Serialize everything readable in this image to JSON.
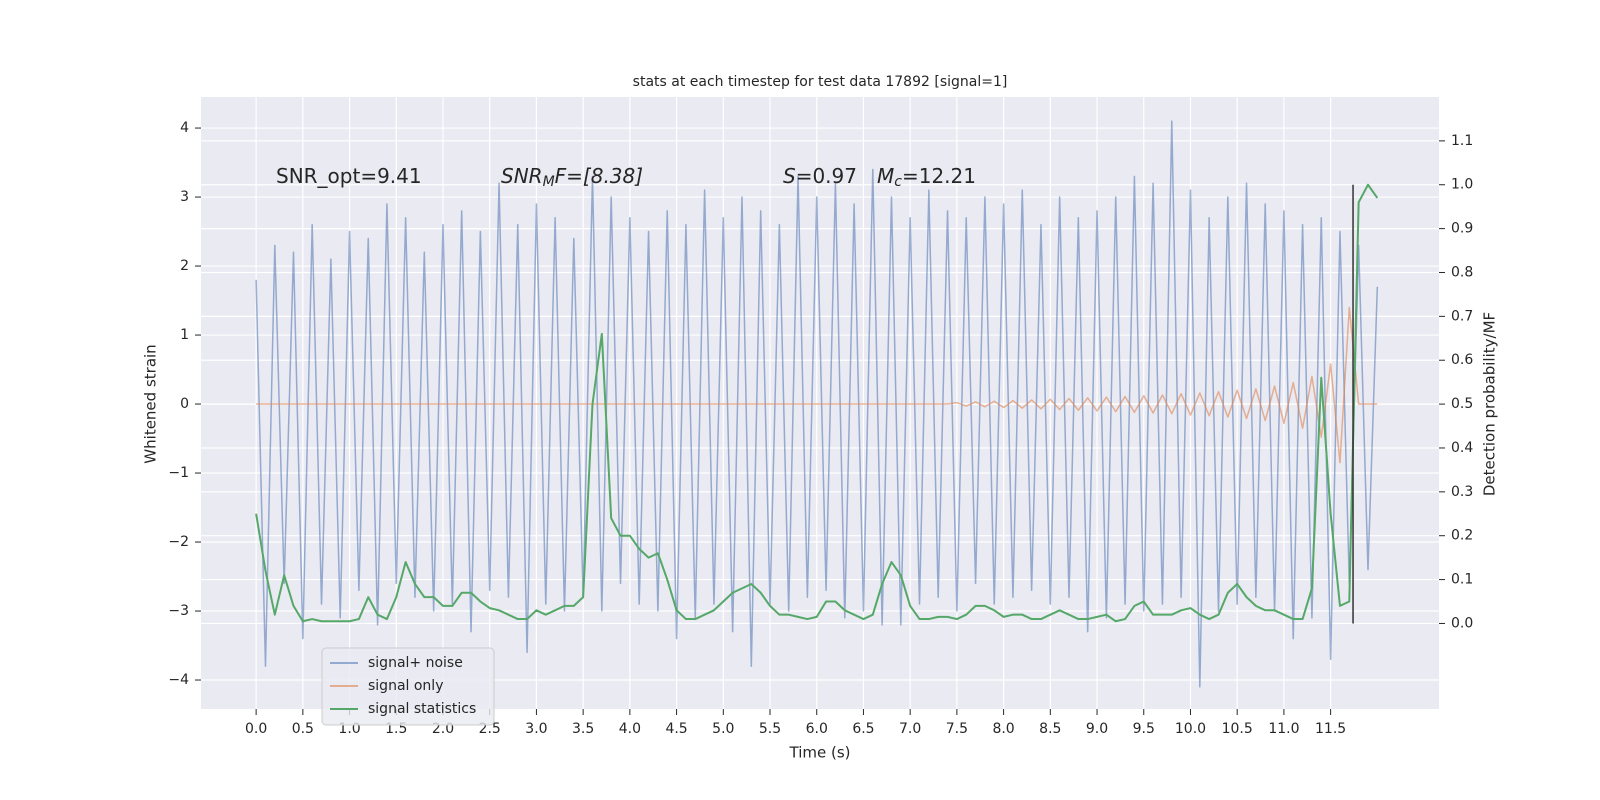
{
  "chart_data": {
    "type": "line",
    "title": "stats at each timestep for test data 17892 [signal=1]",
    "x_label": "Time (s)",
    "y_label": "Whitened strain",
    "y2_label": "Detection probability/MF",
    "annotations": [
      [
        "SNR_opt=9.41"
      ],
      [
        "SNR",
        "M",
        "F=[8.38]"
      ],
      [
        "S",
        "=0.97"
      ],
      [
        "M",
        "c",
        "=12.21"
      ]
    ],
    "x": [
      0.0,
      0.1,
      0.2,
      0.3,
      0.4,
      0.5,
      0.6,
      0.7,
      0.8,
      0.9,
      1.0,
      1.1,
      1.2,
      1.3,
      1.4,
      1.5,
      1.6,
      1.7,
      1.8,
      1.9,
      2.0,
      2.1,
      2.2,
      2.3,
      2.4,
      2.5,
      2.6,
      2.7,
      2.8,
      2.9,
      3.0,
      3.1,
      3.2,
      3.3,
      3.4,
      3.5,
      3.6,
      3.7,
      3.8,
      3.9,
      4.0,
      4.1,
      4.2,
      4.3,
      4.4,
      4.5,
      4.6,
      4.7,
      4.8,
      4.9,
      5.0,
      5.1,
      5.2,
      5.3,
      5.4,
      5.5,
      5.6,
      5.7,
      5.8,
      5.9,
      6.0,
      6.1,
      6.2,
      6.3,
      6.4,
      6.5,
      6.6,
      6.7,
      6.8,
      6.9,
      7.0,
      7.1,
      7.2,
      7.3,
      7.4,
      7.5,
      7.6,
      7.7,
      7.8,
      7.9,
      8.0,
      8.1,
      8.2,
      8.3,
      8.4,
      8.5,
      8.6,
      8.7,
      8.8,
      8.9,
      9.0,
      9.1,
      9.2,
      9.3,
      9.4,
      9.5,
      9.6,
      9.7,
      9.8,
      9.9,
      10.0,
      10.1,
      10.2,
      10.3,
      10.4,
      10.5,
      10.6,
      10.7,
      10.8,
      10.9,
      11.0,
      11.1,
      11.2,
      11.3,
      11.4,
      11.5,
      11.6,
      11.7,
      11.8,
      11.9,
      12.0
    ],
    "series": [
      {
        "name": "signal+ noise",
        "color": "#4c72b0",
        "alpha": 0.55,
        "axis": "y",
        "values": [
          1.8,
          -3.8,
          2.3,
          -2.6,
          2.2,
          -3.4,
          2.6,
          -2.9,
          2.1,
          -3.1,
          2.5,
          -2.7,
          2.4,
          -3.2,
          2.9,
          -2.6,
          2.7,
          -2.8,
          2.2,
          -3.0,
          2.6,
          -2.9,
          2.8,
          -3.3,
          2.5,
          -2.7,
          3.2,
          -2.8,
          2.6,
          -3.6,
          2.9,
          -2.9,
          2.7,
          -3.0,
          2.4,
          -2.8,
          3.3,
          -3.0,
          3.0,
          -2.6,
          2.7,
          -2.9,
          2.5,
          -3.0,
          2.8,
          -3.4,
          2.6,
          -3.1,
          3.1,
          -2.9,
          2.7,
          -3.3,
          3.0,
          -3.8,
          2.8,
          -2.9,
          2.6,
          -3.0,
          3.3,
          -2.8,
          3.0,
          -2.7,
          3.2,
          -3.1,
          2.9,
          -3.0,
          3.4,
          -3.2,
          3.0,
          -3.2,
          2.7,
          -2.9,
          3.1,
          -2.8,
          2.8,
          -3.0,
          2.7,
          -2.6,
          3.0,
          -2.9,
          2.9,
          -2.8,
          3.1,
          -2.7,
          2.6,
          -2.9,
          3.0,
          -2.8,
          2.7,
          -3.3,
          2.8,
          -3.1,
          3.0,
          -2.9,
          3.3,
          -3.0,
          3.2,
          -2.9,
          4.1,
          -2.8,
          3.1,
          -4.1,
          2.7,
          -3.0,
          3.0,
          -2.9,
          3.2,
          -2.8,
          2.9,
          -3.0,
          2.8,
          -3.4,
          2.6,
          -3.1,
          2.7,
          -3.7,
          2.5,
          -2.6,
          2.3,
          -2.4,
          1.7
        ]
      },
      {
        "name": "signal only",
        "color": "#dd8452",
        "alpha": 0.6,
        "axis": "y",
        "values": [
          0,
          0,
          0,
          0,
          0,
          0,
          0,
          0,
          0,
          0,
          0,
          0,
          0,
          0,
          0,
          0,
          0,
          0,
          0,
          0,
          0,
          0,
          0,
          0,
          0,
          0,
          0,
          0,
          0,
          0,
          0,
          0,
          0,
          0,
          0,
          0,
          0,
          0,
          0,
          0,
          0,
          0,
          0,
          0,
          0,
          0,
          0,
          0,
          0,
          0,
          0,
          0,
          0,
          0,
          0,
          0,
          0,
          0,
          0,
          0,
          0,
          0,
          0,
          0,
          0,
          0,
          0,
          0,
          0,
          0,
          0,
          0,
          0,
          0,
          0,
          0.02,
          -0.03,
          0.03,
          -0.04,
          0.04,
          -0.05,
          0.05,
          -0.06,
          0.06,
          -0.07,
          0.07,
          -0.08,
          0.08,
          -0.09,
          0.09,
          -0.1,
          0.1,
          -0.11,
          0.11,
          -0.12,
          0.12,
          -0.13,
          0.13,
          -0.14,
          0.15,
          -0.16,
          0.16,
          -0.17,
          0.18,
          -0.19,
          0.2,
          -0.21,
          0.22,
          -0.24,
          0.26,
          -0.28,
          0.31,
          -0.35,
          0.4,
          -0.48,
          0.58,
          -0.85,
          1.4,
          0,
          0,
          0
        ]
      },
      {
        "name": "signal statistics",
        "color": "#55a868",
        "alpha": 1,
        "axis": "y2",
        "values": [
          0.25,
          0.12,
          0.02,
          0.11,
          0.04,
          0.005,
          0.01,
          0.005,
          0.005,
          0.005,
          0.005,
          0.01,
          0.06,
          0.02,
          0.01,
          0.06,
          0.14,
          0.09,
          0.06,
          0.06,
          0.04,
          0.04,
          0.07,
          0.07,
          0.05,
          0.035,
          0.03,
          0.02,
          0.01,
          0.01,
          0.03,
          0.02,
          0.03,
          0.04,
          0.04,
          0.06,
          0.5,
          0.66,
          0.24,
          0.2,
          0.2,
          0.17,
          0.15,
          0.16,
          0.1,
          0.03,
          0.01,
          0.01,
          0.02,
          0.03,
          0.05,
          0.07,
          0.08,
          0.09,
          0.07,
          0.04,
          0.02,
          0.02,
          0.015,
          0.01,
          0.015,
          0.05,
          0.05,
          0.03,
          0.02,
          0.01,
          0.02,
          0.09,
          0.14,
          0.11,
          0.04,
          0.01,
          0.01,
          0.015,
          0.015,
          0.01,
          0.02,
          0.04,
          0.04,
          0.03,
          0.015,
          0.02,
          0.02,
          0.01,
          0.01,
          0.02,
          0.03,
          0.02,
          0.01,
          0.01,
          0.015,
          0.02,
          0.005,
          0.01,
          0.04,
          0.05,
          0.02,
          0.02,
          0.02,
          0.03,
          0.035,
          0.02,
          0.01,
          0.02,
          0.07,
          0.09,
          0.06,
          0.04,
          0.03,
          0.03,
          0.02,
          0.01,
          0.01,
          0.08,
          0.56,
          0.25,
          0.04,
          0.05,
          0.96,
          1.0,
          0.97
        ]
      }
    ],
    "vline": {
      "x": 11.74,
      "y2": [
        0,
        1
      ],
      "color": "#333333"
    },
    "xlim": [
      -0.59,
      12.66
    ],
    "xticks": [
      {
        "value": 0,
        "label": "0.0"
      },
      0.5,
      {
        "value": 1,
        "label": "1.0"
      },
      1.5,
      {
        "value": 2,
        "label": "2.0"
      },
      2.5,
      {
        "value": 3,
        "label": "3.0"
      },
      3.5,
      {
        "value": 4,
        "label": "4.0"
      },
      4.5,
      {
        "value": 5,
        "label": "5.0"
      },
      5.5,
      {
        "value": 6,
        "label": "6.0"
      },
      6.5,
      {
        "value": 7,
        "label": "7.0"
      },
      7.5,
      {
        "value": 8,
        "label": "8.0"
      },
      8.5,
      {
        "value": 9,
        "label": "9.0"
      },
      9.5,
      {
        "value": 10,
        "label": "10.0"
      },
      10.5,
      {
        "value": 11,
        "label": "11.0"
      },
      11.5
    ],
    "ylim": [
      -4.42,
      4.45
    ],
    "yticks": [
      {
        "value": -4,
        "label": "−4"
      },
      {
        "value": -3,
        "label": "−3"
      },
      {
        "value": -2,
        "label": "−2"
      },
      {
        "value": -1,
        "label": "−1"
      },
      0,
      1,
      2,
      3,
      4
    ],
    "y2lim": [
      -0.195,
      1.2
    ],
    "y2ticks": [
      {
        "value": 0,
        "label": "0.0"
      },
      0.1,
      0.2,
      0.3,
      0.4,
      0.5,
      0.6,
      0.7,
      0.8,
      0.9,
      {
        "value": 1,
        "label": "1.0"
      },
      1.1
    ],
    "grid": true,
    "legend": "lower left",
    "background": "#eaeaf2"
  }
}
